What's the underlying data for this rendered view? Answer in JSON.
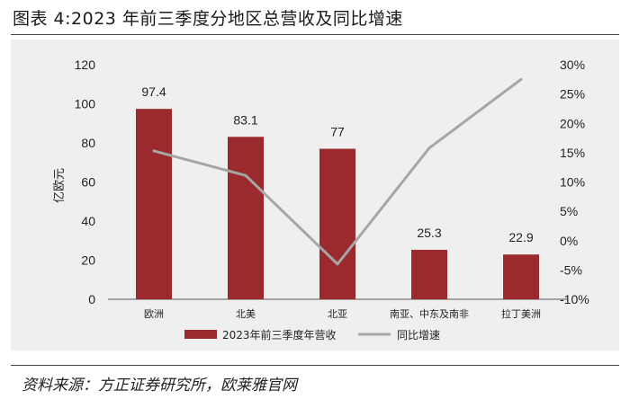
{
  "title": "图表 4:2023 年前三季度分地区总营收及同比增速",
  "source": "资料来源：方正证券研究所，欧莱雅官网",
  "chart_data": {
    "type": "bar",
    "categories": [
      "欧洲",
      "北美",
      "北亚",
      "南亚、中东及南非",
      "拉丁美洲"
    ],
    "ylabel": "亿欧元",
    "ylim": [
      0,
      120
    ],
    "yticks": [
      0,
      20,
      40,
      60,
      80,
      100,
      120
    ],
    "y2lim": [
      -10,
      30
    ],
    "y2ticks": [
      "-10%",
      "-5%",
      "0%",
      "5%",
      "10%",
      "15%",
      "20%",
      "25%",
      "30%"
    ],
    "series": [
      {
        "name": "2023年前三季度年营收",
        "type": "bar",
        "axis": "left",
        "color": "#9b2a2e",
        "values": [
          97.4,
          83.1,
          77,
          25.3,
          22.9
        ],
        "labels": [
          "97.4",
          "83.1",
          "77",
          "25.3",
          "22.9"
        ]
      },
      {
        "name": "同比增速",
        "type": "line",
        "axis": "right",
        "color": "#a6a6a6",
        "values": [
          15.3,
          11.1,
          -4.0,
          15.8,
          27.5
        ]
      }
    ],
    "grid": false,
    "legend": "bottom"
  }
}
